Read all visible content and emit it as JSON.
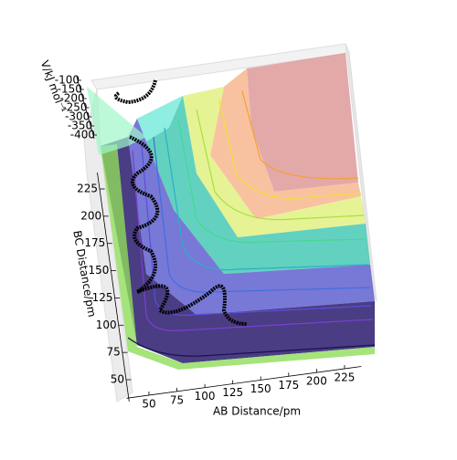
{
  "chart_data": {
    "type": "surface3d",
    "xlabel": "AB Distance/pm",
    "ylabel": "BC Distance/pm",
    "zlabel": "V/kJ mol⁻¹",
    "xlim": [
      30,
      240
    ],
    "xticks": [
      50,
      75,
      100,
      125,
      150,
      175,
      200,
      225
    ],
    "ylim": [
      30,
      240
    ],
    "yticks": [
      50,
      75,
      100,
      125,
      150,
      175,
      200,
      225
    ],
    "zlim": [
      -420,
      -80
    ],
    "zticks": [
      -100,
      -150,
      -200,
      -250,
      -300,
      -350,
      -400
    ]
  }
}
